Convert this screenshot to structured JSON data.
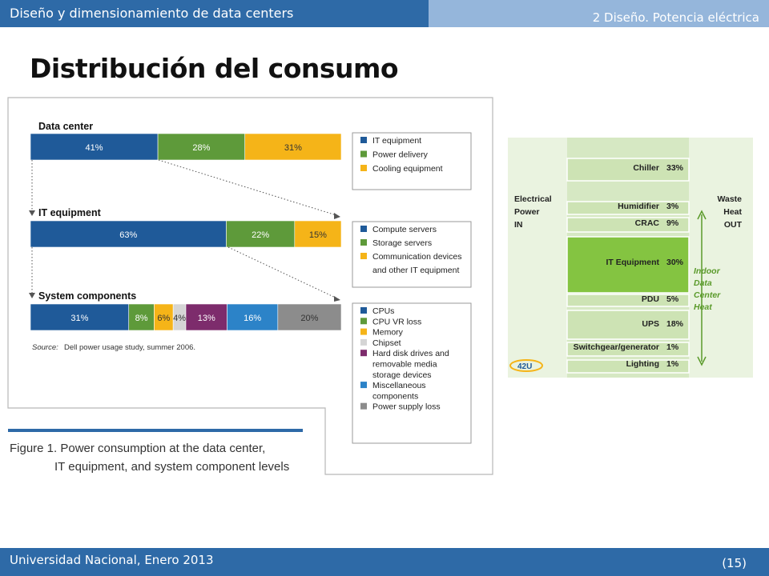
{
  "header": {
    "course_title": "Diseño y dimensionamiento de data centers",
    "section_title": "2 Diseño. Potencia eléctrica"
  },
  "slide": {
    "title": "Distribución del consumo"
  },
  "footer": {
    "institution": "Universidad Nacional, Enero 2013",
    "page": "(15)"
  },
  "colors": {
    "blue": "#1f5a99",
    "green": "#5e9a3a",
    "yellow": "#f5b418",
    "light_gray": "#d5d5d5",
    "purple": "#7d2c6c",
    "cyan": "#2c83c8",
    "gray": "#8c8c8c",
    "heat_green": "#84c441"
  },
  "chart_data": [
    {
      "type": "bar",
      "subtype": "stacked-100",
      "figure_caption_line1": "Figure 1. Power consumption at the data center,",
      "figure_caption_line2": "IT equipment, and system component levels",
      "source_label": "Source:",
      "source": "Dell power usage study, summer 2006.",
      "groups": [
        {
          "name": "Data center",
          "segments": [
            {
              "label": "IT equipment",
              "value": 41,
              "display": "41%",
              "color": "#1f5a99"
            },
            {
              "label": "Power delivery",
              "value": 28,
              "display": "28%",
              "color": "#5e9a3a"
            },
            {
              "label": "Cooling equipment",
              "value": 31,
              "display": "31%",
              "color": "#f5b418"
            }
          ],
          "legend": [
            "IT equipment",
            "Power delivery",
            "Cooling equipment"
          ]
        },
        {
          "name": "IT equipment",
          "segments": [
            {
              "label": "Compute servers",
              "value": 63,
              "display": "63%",
              "color": "#1f5a99"
            },
            {
              "label": "Storage servers",
              "value": 22,
              "display": "22%",
              "color": "#5e9a3a"
            },
            {
              "label": "Communication devices and other IT equipment",
              "value": 15,
              "display": "15%",
              "color": "#f5b418"
            }
          ],
          "legend": [
            "Compute servers",
            "Storage servers",
            "Communication devices",
            "and other IT equipment"
          ]
        },
        {
          "name": "System components",
          "segments": [
            {
              "label": "CPUs",
              "value": 31,
              "display": "31%",
              "color": "#1f5a99"
            },
            {
              "label": "CPU VR loss",
              "value": 8,
              "display": "8%",
              "color": "#5e9a3a"
            },
            {
              "label": "Memory",
              "value": 6,
              "display": "6%",
              "color": "#f5b418"
            },
            {
              "label": "Chipset",
              "value": 4,
              "display": "4%",
              "color": "#d5d5d5"
            },
            {
              "label": "Hard disk drives and removable media storage devices",
              "value": 13,
              "display": "13%",
              "color": "#7d2c6c"
            },
            {
              "label": "Miscellaneous components",
              "value": 16,
              "display": "16%",
              "color": "#2c83c8"
            },
            {
              "label": "Power supply loss",
              "value": 20,
              "display": "20%",
              "color": "#8c8c8c"
            }
          ],
          "legend": [
            "CPUs",
            "CPU VR loss",
            "Memory",
            "Chipset",
            "Hard disk drives and",
            "removable media",
            "storage devices",
            "Miscellaneous",
            "components",
            "Power supply loss"
          ]
        }
      ]
    },
    {
      "type": "table",
      "left_label": [
        "Electrical",
        "Power",
        "IN"
      ],
      "right_label": [
        "Waste",
        "Heat",
        "OUT"
      ],
      "side_note": [
        "Indoor",
        "Data",
        "Center",
        "Heat"
      ],
      "logo_text": "42U",
      "rows": [
        {
          "label": "Chiller",
          "value": 33,
          "display": "33%"
        },
        {
          "label": "Humidifier",
          "value": 3,
          "display": "3%"
        },
        {
          "label": "CRAC",
          "value": 9,
          "display": "9%"
        },
        {
          "label": "IT Equipment",
          "value": 30,
          "display": "30%",
          "highlight": true
        },
        {
          "label": "PDU",
          "value": 5,
          "display": "5%"
        },
        {
          "label": "UPS",
          "value": 18,
          "display": "18%"
        },
        {
          "label": "Switchgear/generator",
          "value": 1,
          "display": "1%"
        },
        {
          "label": "Lighting",
          "value": 1,
          "display": "1%"
        }
      ]
    }
  ]
}
